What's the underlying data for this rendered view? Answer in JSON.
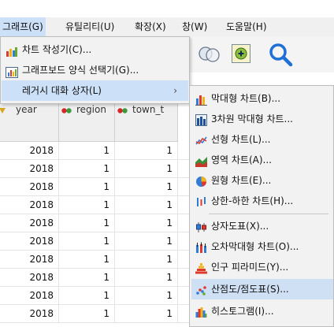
{
  "menubar": {
    "items": [
      {
        "label": "그래프(G)"
      },
      {
        "label": "유틸리티(U)"
      },
      {
        "label": "확장(X)"
      },
      {
        "label": "창(W)"
      },
      {
        "label": "도움말(H)"
      }
    ]
  },
  "graph_menu": {
    "items": [
      {
        "label": "차트 작성기(C)...",
        "icon": "chart-builder-icon"
      },
      {
        "label": "그래프보드 양식 선택기(G)...",
        "icon": "graphboard-icon"
      },
      {
        "label": "레거시 대화 상자(L)",
        "arrow": "›"
      }
    ]
  },
  "legacy_menu": {
    "items": [
      {
        "label": "막대형 차트(B)...",
        "icon": "bar-chart-icon"
      },
      {
        "label": "3차원 막대형 차트...",
        "icon": "bar3d-chart-icon"
      },
      {
        "label": "선형 차트(L)...",
        "icon": "line-chart-icon"
      },
      {
        "label": "영역 차트(A)...",
        "icon": "area-chart-icon"
      },
      {
        "label": "원형 차트(E)...",
        "icon": "pie-chart-icon"
      },
      {
        "label": "상한-하한 차트(H)...",
        "icon": "high-low-chart-icon"
      },
      {
        "label": "상자도표(X)...",
        "icon": "boxplot-icon"
      },
      {
        "label": "오차막대형 차트(O)...",
        "icon": "error-bar-icon"
      },
      {
        "label": "인구 피라미드(Y)...",
        "icon": "pyramid-icon"
      },
      {
        "label": "산점도/점도표(S)...",
        "icon": "scatter-icon"
      },
      {
        "label": "히스토그램(I)...",
        "icon": "histogram-icon"
      }
    ]
  },
  "grid": {
    "columns": [
      "year",
      "region",
      "town_t"
    ],
    "rows": [
      [
        "2018",
        "1",
        "1"
      ],
      [
        "2018",
        "1",
        "1"
      ],
      [
        "2018",
        "1",
        "1"
      ],
      [
        "2018",
        "1",
        "1"
      ],
      [
        "2018",
        "1",
        "1"
      ],
      [
        "2018",
        "1",
        "1"
      ],
      [
        "2018",
        "1",
        "1"
      ],
      [
        "2018",
        "1",
        "1"
      ],
      [
        "2018",
        "1",
        "1"
      ],
      [
        "2018",
        "1",
        "1"
      ]
    ]
  },
  "colors": {
    "highlight": "#cce0f7",
    "menu_bg": "#f2f2f2",
    "search_blue": "#1f6fd6",
    "add_green": "#8dbf3a"
  }
}
